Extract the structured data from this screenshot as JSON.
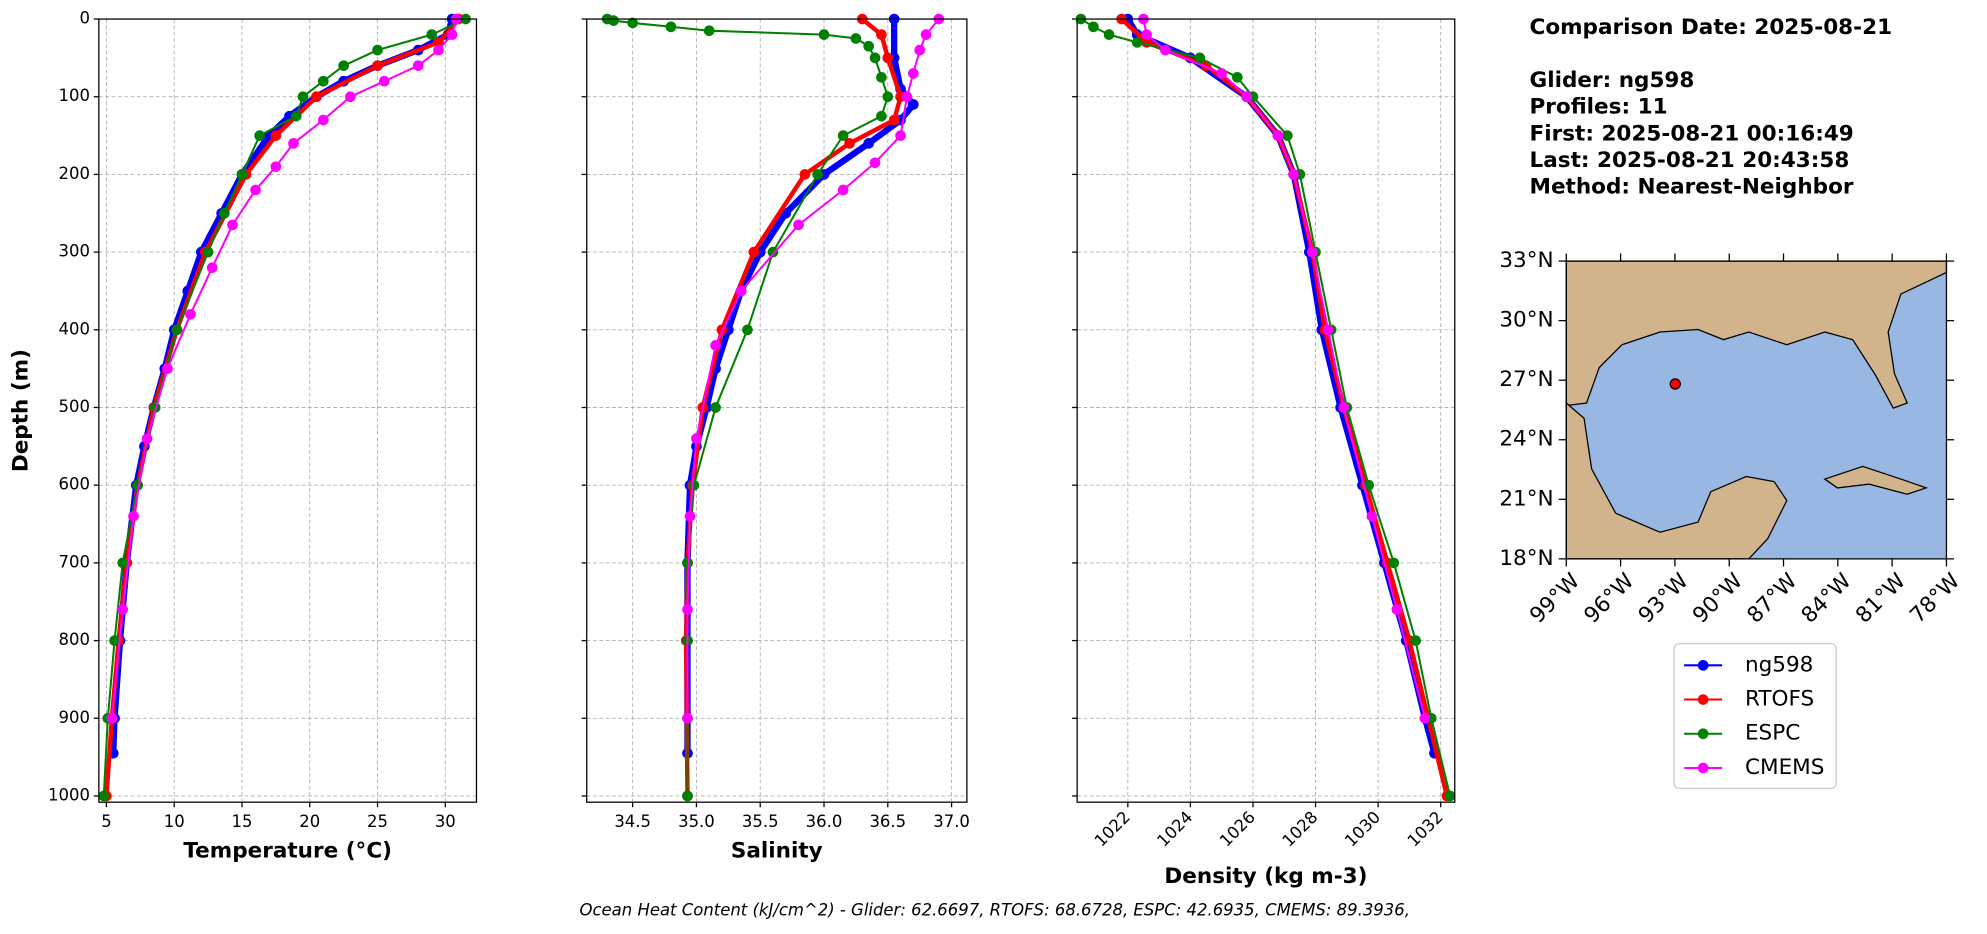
{
  "chart_data": [
    {
      "type": "line",
      "xlabel": "Temperature (°C)",
      "ylabel": "Depth (m)",
      "xlim": [
        4.44,
        32.3
      ],
      "xticks": [
        5,
        10,
        15,
        20,
        25,
        30
      ],
      "ylim": [
        1008,
        0
      ],
      "yticks": [
        0,
        100,
        200,
        300,
        400,
        500,
        600,
        700,
        800,
        900,
        1000
      ],
      "grid": true,
      "series": [
        {
          "name": "ng598",
          "color": "#0000ff",
          "depth": [
            0,
            20,
            40,
            60,
            80,
            100,
            125,
            150,
            200,
            250,
            300,
            350,
            400,
            450,
            500,
            550,
            600,
            700,
            800,
            900,
            945
          ],
          "values": [
            30.5,
            30.2,
            28,
            25,
            22.5,
            20.5,
            18.5,
            17,
            15,
            13.5,
            12,
            11,
            10,
            9.3,
            8.5,
            7.8,
            7.2,
            6.5,
            6,
            5.6,
            5.5
          ]
        },
        {
          "name": "RTOFS",
          "color": "#ff0000",
          "depth": [
            0,
            30,
            60,
            100,
            150,
            200,
            300,
            400,
            500,
            600,
            700,
            800,
            900,
            1000
          ],
          "values": [
            31,
            29.5,
            25,
            20.5,
            17.5,
            15.3,
            12.3,
            10.2,
            8.5,
            7.3,
            6.5,
            5.9,
            5.4,
            5
          ]
        },
        {
          "name": "ESPC",
          "color": "#008000",
          "depth": [
            0,
            20,
            40,
            60,
            80,
            100,
            125,
            150,
            200,
            250,
            300,
            400,
            500,
            600,
            700,
            800,
            900,
            1000
          ],
          "values": [
            31.5,
            29,
            25,
            22.5,
            21,
            19.5,
            19,
            16.3,
            15,
            13.7,
            12.5,
            10.2,
            8.6,
            7.3,
            6.2,
            5.6,
            5.1,
            4.8
          ]
        },
        {
          "name": "CMEMS",
          "color": "#ff00ff",
          "depth": [
            0,
            20,
            40,
            60,
            80,
            100,
            130,
            160,
            190,
            220,
            265,
            320,
            380,
            450,
            540,
            640,
            760,
            900
          ],
          "values": [
            30.8,
            30.5,
            29.5,
            28,
            25.5,
            23,
            21,
            18.8,
            17.5,
            16,
            14.3,
            12.8,
            11.2,
            9.5,
            8,
            7,
            6.2,
            5.4
          ]
        }
      ]
    },
    {
      "type": "line",
      "xlabel": "Salinity",
      "xlim": [
        34.14,
        37.12
      ],
      "xticks": [
        34.5,
        {
          "value": 35,
          "label": "35.0"
        },
        35.5,
        {
          "value": 36,
          "label": "36.0"
        },
        36.5,
        {
          "value": 37,
          "label": "37.0"
        }
      ],
      "ylim": [
        1008,
        0
      ],
      "yticks": [
        0,
        100,
        200,
        300,
        400,
        500,
        600,
        700,
        800,
        900,
        1000
      ],
      "grid": true,
      "series": [
        {
          "name": "ng598",
          "color": "#0000ff",
          "depth": [
            0,
            50,
            90,
            110,
            130,
            160,
            200,
            250,
            300,
            350,
            400,
            450,
            500,
            550,
            600,
            700,
            800,
            945
          ],
          "values": [
            36.55,
            36.55,
            36.6,
            36.7,
            36.6,
            36.35,
            36.0,
            35.7,
            35.5,
            35.35,
            35.25,
            35.15,
            35.08,
            35.0,
            34.95,
            34.93,
            34.93,
            34.93
          ]
        },
        {
          "name": "RTOFS",
          "color": "#ff0000",
          "depth": [
            0,
            20,
            50,
            100,
            130,
            160,
            200,
            300,
            400,
            500,
            600,
            700,
            800,
            1000
          ],
          "values": [
            36.3,
            36.45,
            36.5,
            36.6,
            36.55,
            36.2,
            35.85,
            35.45,
            35.2,
            35.05,
            34.97,
            34.93,
            34.92,
            34.93
          ]
        },
        {
          "name": "ESPC",
          "color": "#008000",
          "depth": [
            0,
            2,
            5,
            10,
            15,
            20,
            25,
            35,
            50,
            75,
            100,
            125,
            150,
            200,
            300,
            400,
            500,
            600,
            700,
            800,
            900,
            1000
          ],
          "values": [
            34.3,
            34.35,
            34.5,
            34.8,
            35.1,
            36.0,
            36.25,
            36.35,
            36.4,
            36.45,
            36.5,
            36.45,
            36.15,
            35.95,
            35.6,
            35.4,
            35.15,
            34.98,
            34.93,
            34.93,
            34.93,
            34.93
          ]
        },
        {
          "name": "CMEMS",
          "color": "#ff00ff",
          "depth": [
            0,
            20,
            40,
            70,
            100,
            150,
            185,
            220,
            265,
            350,
            420,
            540,
            640,
            760,
            900
          ],
          "values": [
            36.9,
            36.8,
            36.75,
            36.7,
            36.65,
            36.6,
            36.4,
            36.15,
            35.8,
            35.35,
            35.15,
            35.0,
            34.95,
            34.93,
            34.93
          ]
        }
      ]
    },
    {
      "type": "line",
      "xlabel": "Density (kg m-3)",
      "xlim": [
        1020.38,
        1032.45
      ],
      "xticks": [
        1022,
        1024,
        1026,
        1028,
        1030,
        1032
      ],
      "ylim": [
        1008,
        0
      ],
      "yticks": [
        0,
        100,
        200,
        300,
        400,
        500,
        600,
        700,
        800,
        900,
        1000
      ],
      "grid": true,
      "series": [
        {
          "name": "ng598",
          "color": "#0000ff",
          "depth": [
            0,
            20,
            50,
            100,
            150,
            200,
            300,
            400,
            500,
            600,
            700,
            800,
            900,
            945
          ],
          "values": [
            1022,
            1022.3,
            1024,
            1025.8,
            1026.8,
            1027.3,
            1027.8,
            1028.2,
            1028.8,
            1029.5,
            1030.2,
            1030.9,
            1031.5,
            1031.8
          ]
        },
        {
          "name": "RTOFS",
          "color": "#ff0000",
          "depth": [
            0,
            30,
            60,
            100,
            150,
            200,
            300,
            400,
            500,
            600,
            700,
            800,
            900,
            1000
          ],
          "values": [
            1021.8,
            1022.6,
            1024.5,
            1025.8,
            1026.8,
            1027.3,
            1027.9,
            1028.3,
            1028.9,
            1029.6,
            1030.3,
            1031,
            1031.6,
            1032.2
          ]
        },
        {
          "name": "ESPC",
          "color": "#008000",
          "depth": [
            0,
            10,
            20,
            30,
            50,
            75,
            100,
            150,
            200,
            300,
            400,
            500,
            600,
            700,
            800,
            900,
            1000
          ],
          "values": [
            1020.5,
            1020.9,
            1021.4,
            1022.3,
            1024.3,
            1025.5,
            1026,
            1027.1,
            1027.5,
            1028.0,
            1028.5,
            1029.0,
            1029.7,
            1030.5,
            1031.2,
            1031.7,
            1032.3
          ]
        },
        {
          "name": "CMEMS",
          "color": "#ff00ff",
          "depth": [
            0,
            20,
            40,
            70,
            100,
            150,
            200,
            300,
            400,
            500,
            640,
            760,
            900
          ],
          "values": [
            1022.5,
            1022.6,
            1023.2,
            1025,
            1025.8,
            1026.8,
            1027.3,
            1027.9,
            1028.4,
            1028.9,
            1029.8,
            1030.6,
            1031.5
          ]
        }
      ]
    }
  ],
  "info": {
    "title": "Comparison Date: 2025-08-21",
    "lines": [
      "Glider: ng598",
      "Profiles: 11",
      "First: 2025-08-21 00:16:49",
      "Last: 2025-08-21 20:43:58",
      "Method: Nearest-Neighbor"
    ]
  },
  "map": {
    "lat_labels": [
      "33°N",
      "30°N",
      "27°N",
      "24°N",
      "21°N",
      "18°N"
    ],
    "lon_labels": [
      "99°W",
      "96°W",
      "93°W",
      "90°W",
      "87°W",
      "84°W",
      "81°W",
      "78°W"
    ]
  },
  "footer": "Ocean Heat Content (kJ/cm^2) - Glider: 62.6697,  RTOFS: 68.6728,  ESPC: 42.6935,  CMEMS: 89.3936,"
}
